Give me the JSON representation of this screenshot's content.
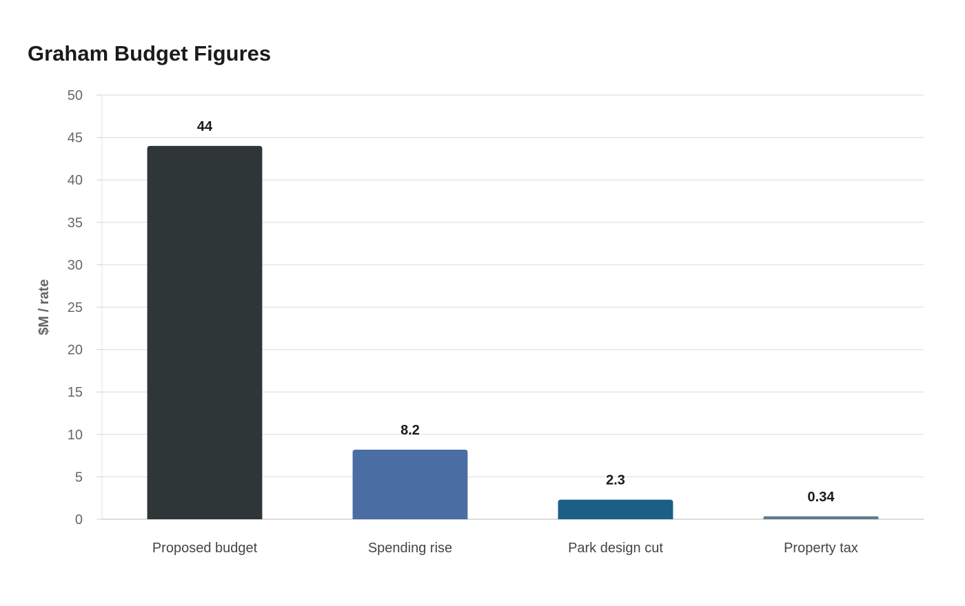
{
  "chart_data": {
    "type": "bar",
    "title": "Graham Budget Figures",
    "xlabel": "",
    "ylabel": "$M / rate",
    "ylim": [
      0,
      50
    ],
    "yticks": [
      0,
      5,
      10,
      15,
      20,
      25,
      30,
      35,
      40,
      45,
      50
    ],
    "grid": true,
    "legend": "none",
    "categories": [
      "Proposed budget",
      "Spending rise",
      "Park design cut",
      "Property tax"
    ],
    "values": [
      44,
      8.2,
      2.3,
      0.34
    ],
    "value_labels": [
      "44",
      "8.2",
      "2.3",
      "0.34"
    ],
    "colors": [
      "#2e3638",
      "#4a6ea3",
      "#1b5f87",
      "#5e7b8b"
    ]
  }
}
